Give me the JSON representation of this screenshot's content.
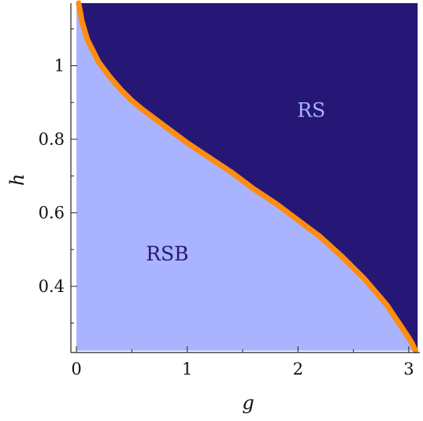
{
  "chart_data": {
    "type": "area",
    "title": "",
    "xlabel": "g",
    "ylabel": "h",
    "xlim": [
      -0.05,
      3.1
    ],
    "ylim": [
      0.22,
      1.17
    ],
    "data_xlim": [
      0.0,
      3.08
    ],
    "data_ylim": [
      0.225,
      1.17
    ],
    "xticks": [
      0,
      1,
      2,
      3
    ],
    "xtick_labels": [
      "0",
      "1",
      "2",
      "3"
    ],
    "yticks": [
      0.4,
      0.6,
      0.8,
      1.0
    ],
    "ytick_labels": [
      "0.4",
      "0.6",
      "0.8",
      "1"
    ],
    "grid": false,
    "colors": {
      "rs_region": "#261776",
      "rsb_region": "#aab3fd",
      "boundary": "#ff8c0f",
      "rs_label": "#aab3fd",
      "rsb_label": "#261776"
    },
    "boundary_curve": {
      "g": [
        0.02,
        0.05,
        0.1,
        0.2,
        0.3,
        0.4,
        0.5,
        0.6,
        0.8,
        1.0,
        1.2,
        1.4,
        1.6,
        1.8,
        2.0,
        2.2,
        2.4,
        2.6,
        2.8,
        2.9,
        3.0,
        3.03,
        3.06
      ],
      "h": [
        1.17,
        1.12,
        1.07,
        1.01,
        0.97,
        0.935,
        0.905,
        0.88,
        0.835,
        0.79,
        0.75,
        0.71,
        0.665,
        0.625,
        0.58,
        0.535,
        0.48,
        0.42,
        0.35,
        0.305,
        0.26,
        0.245,
        0.225
      ]
    },
    "regions": [
      {
        "label": "RS",
        "label_at": [
          2.12,
          0.88
        ]
      },
      {
        "label": "RSB",
        "label_at": [
          0.82,
          0.49
        ]
      }
    ]
  }
}
